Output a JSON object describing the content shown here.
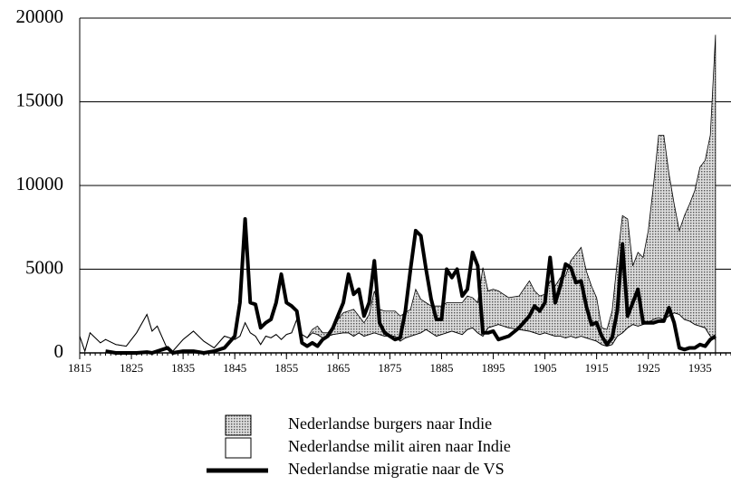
{
  "chart_data": {
    "type": "stacked-area-line",
    "x": [
      1815,
      1816,
      1817,
      1819,
      1820,
      1822,
      1824,
      1826,
      1828,
      1829,
      1830,
      1832,
      1833,
      1835,
      1837,
      1839,
      1841,
      1843,
      1845,
      1846,
      1847,
      1848,
      1849,
      1850,
      1851,
      1852,
      1853,
      1854,
      1855,
      1856,
      1857,
      1858,
      1859,
      1860,
      1861,
      1862,
      1863,
      1864,
      1866,
      1867,
      1868,
      1869,
      1870,
      1871,
      1872,
      1873,
      1874,
      1876,
      1877,
      1878,
      1879,
      1880,
      1881,
      1882,
      1883,
      1884,
      1885,
      1886,
      1887,
      1888,
      1889,
      1890,
      1891,
      1892,
      1893,
      1894,
      1895,
      1896,
      1898,
      1900,
      1902,
      1903,
      1904,
      1905,
      1906,
      1907,
      1908,
      1909,
      1910,
      1911,
      1912,
      1913,
      1914,
      1915,
      1916,
      1917,
      1918,
      1919,
      1920,
      1921,
      1922,
      1923,
      1924,
      1925,
      1926,
      1927,
      1928,
      1929,
      1930,
      1931,
      1932,
      1933,
      1934,
      1935,
      1936,
      1937,
      1938
    ],
    "series": [
      {
        "name": "Nederlandse milit airen naar Indie",
        "color": "#ffffff",
        "values": [
          1000,
          100,
          1200,
          600,
          800,
          500,
          400,
          1200,
          2300,
          1300,
          1600,
          200,
          100,
          800,
          1300,
          700,
          300,
          1000,
          800,
          1000,
          1800,
          1200,
          1000,
          500,
          1000,
          900,
          1100,
          800,
          1100,
          1200,
          2000,
          1100,
          900,
          1200,
          1100,
          900,
          1000,
          1100,
          1200,
          1200,
          1000,
          1200,
          1000,
          1100,
          1200,
          1100,
          1000,
          1000,
          700,
          900,
          1000,
          1100,
          1200,
          1400,
          1200,
          1000,
          1100,
          1200,
          1300,
          1200,
          1100,
          1400,
          1500,
          1200,
          1000,
          1500,
          1600,
          1700,
          1500,
          1400,
          1300,
          1200,
          1100,
          1200,
          1100,
          1000,
          1000,
          900,
          1000,
          900,
          1000,
          900,
          800,
          700,
          500,
          400,
          500,
          1000,
          1200,
          1500,
          1700,
          1600,
          1700,
          1800,
          2000,
          2100,
          2000,
          2200,
          2400,
          2300,
          2000,
          1900,
          1700,
          1600,
          1500,
          1000,
          800
        ]
      },
      {
        "name": "Nederlandse burgers naar Indie",
        "color": "url(#dots)",
        "values": [
          0,
          0,
          0,
          0,
          0,
          0,
          0,
          0,
          0,
          0,
          0,
          0,
          0,
          0,
          0,
          0,
          0,
          0,
          0,
          0,
          0,
          0,
          0,
          0,
          0,
          0,
          0,
          0,
          0,
          0,
          0,
          0,
          0,
          200,
          500,
          300,
          200,
          500,
          1200,
          1300,
          1600,
          1000,
          800,
          1200,
          2500,
          1500,
          1500,
          1500,
          1500,
          1500,
          1600,
          2700,
          2000,
          1600,
          1600,
          1800,
          1700,
          1800,
          1700,
          1800,
          1900,
          2000,
          1800,
          1800,
          4100,
          2200,
          2200,
          2000,
          1800,
          2000,
          3000,
          2500,
          2300,
          2300,
          3200,
          3000,
          3500,
          3700,
          4500,
          5000,
          5300,
          4000,
          3200,
          2600,
          1000,
          1000,
          2000,
          4500,
          7000,
          6500,
          3500,
          4400,
          4000,
          5500,
          8000,
          10900,
          11000,
          8500,
          6500,
          5000,
          6200,
          7000,
          8000,
          9500,
          10000,
          12000,
          18200
        ]
      },
      {
        "name": "Nederlandse migratie naar de VS",
        "color": "#000000",
        "values": [
          null,
          null,
          null,
          null,
          100,
          0,
          0,
          0,
          50,
          0,
          100,
          300,
          0,
          100,
          100,
          0,
          100,
          300,
          1000,
          3000,
          8000,
          3000,
          2900,
          1500,
          1800,
          2000,
          3000,
          4700,
          3000,
          2800,
          2500,
          600,
          400,
          600,
          400,
          800,
          1000,
          1500,
          3000,
          4700,
          3500,
          3800,
          2200,
          3000,
          5500,
          1800,
          1200,
          800,
          900,
          2500,
          5000,
          7300,
          7000,
          5000,
          3200,
          2000,
          2000,
          5000,
          4500,
          5000,
          3400,
          3800,
          6000,
          5200,
          1200,
          1200,
          1300,
          800,
          1000,
          1500,
          2200,
          2800,
          2500,
          3000,
          5700,
          3000,
          4000,
          5300,
          5100,
          4200,
          4300,
          2800,
          1700,
          1800,
          1000,
          500,
          900,
          2500,
          6500,
          2200,
          3000,
          3800,
          1800,
          1800,
          1800,
          1900,
          1900,
          2700,
          1800,
          300,
          200,
          300,
          300,
          500,
          400,
          800,
          1000
        ]
      }
    ],
    "xlim": [
      1815,
      1941
    ],
    "xticks": [
      1815,
      1825,
      1835,
      1845,
      1855,
      1865,
      1875,
      1885,
      1895,
      1905,
      1915,
      1925,
      1935
    ],
    "ylim": [
      0,
      20000
    ],
    "yticks": [
      0,
      5000,
      10000,
      15000,
      20000
    ],
    "grid": true
  }
}
